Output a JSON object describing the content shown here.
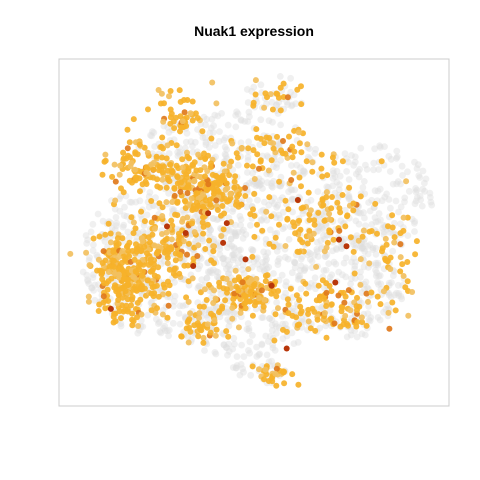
{
  "chart_data": {
    "type": "scatter",
    "title": "Nuak1 expression",
    "xlabel": "",
    "ylabel": "",
    "axes_visible": false,
    "grid": false,
    "legend": "none",
    "xlim": [
      0,
      100
    ],
    "ylim": [
      0,
      100
    ],
    "color_scale": {
      "description": "expression level, low to high",
      "colors": [
        "#dddddd",
        "#f2c060",
        "#f6b22a",
        "#e07a1c",
        "#b8360a"
      ]
    },
    "background_cloud": {
      "note": "faint grey points for all cells (low/no expression)",
      "color": "#dddddd",
      "regions": [
        {
          "cx": 26,
          "cy": 58,
          "rx": 22,
          "ry": 24
        },
        {
          "cx": 48,
          "cy": 78,
          "rx": 17,
          "ry": 10
        },
        {
          "cx": 50,
          "cy": 50,
          "rx": 20,
          "ry": 16
        },
        {
          "cx": 74,
          "cy": 66,
          "rx": 17,
          "ry": 16
        },
        {
          "cx": 82,
          "cy": 40,
          "rx": 16,
          "ry": 17
        },
        {
          "cx": 43,
          "cy": 26,
          "rx": 24,
          "ry": 13
        },
        {
          "cx": 56,
          "cy": 8,
          "rx": 8,
          "ry": 6
        },
        {
          "cx": 52,
          "cy": 91,
          "rx": 8,
          "ry": 5
        }
      ]
    },
    "expressing_clusters": [
      {
        "cx": 16,
        "cy": 64,
        "sx": 8,
        "sy": 10,
        "n": 260
      },
      {
        "cx": 26,
        "cy": 55,
        "sx": 10,
        "sy": 10,
        "n": 140
      },
      {
        "cx": 36,
        "cy": 37,
        "sx": 10,
        "sy": 9,
        "n": 240
      },
      {
        "cx": 20,
        "cy": 30,
        "sx": 8,
        "sy": 7,
        "n": 90
      },
      {
        "cx": 47,
        "cy": 68,
        "sx": 8,
        "sy": 5,
        "n": 110
      },
      {
        "cx": 36,
        "cy": 78,
        "sx": 6,
        "sy": 6,
        "n": 50
      },
      {
        "cx": 70,
        "cy": 72,
        "sx": 13,
        "sy": 8,
        "n": 110
      },
      {
        "cx": 68,
        "cy": 46,
        "sx": 14,
        "sy": 10,
        "n": 100
      },
      {
        "cx": 58,
        "cy": 26,
        "sx": 12,
        "sy": 7,
        "n": 60
      },
      {
        "cx": 30,
        "cy": 15,
        "sx": 8,
        "sy": 7,
        "n": 50
      },
      {
        "cx": 55,
        "cy": 8,
        "sx": 7,
        "sy": 6,
        "n": 20
      },
      {
        "cx": 56,
        "cy": 93,
        "sx": 4,
        "sy": 3,
        "n": 28
      },
      {
        "cx": 88,
        "cy": 57,
        "sx": 6,
        "sy": 12,
        "n": 35
      }
    ],
    "high_expression_points": [
      [
        27,
        48
      ],
      [
        42,
        53
      ],
      [
        48,
        58
      ],
      [
        43,
        47
      ],
      [
        62,
        40
      ],
      [
        73,
        52
      ],
      [
        72,
        65
      ],
      [
        12,
        73
      ],
      [
        34,
        60
      ],
      [
        55,
        66
      ],
      [
        59,
        85
      ],
      [
        32,
        50
      ],
      [
        75,
        54
      ],
      [
        38,
        44
      ]
    ]
  }
}
